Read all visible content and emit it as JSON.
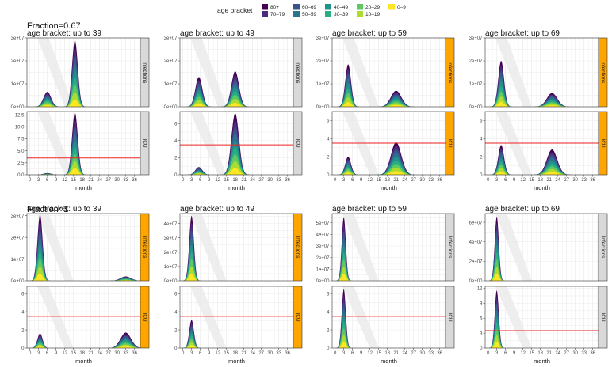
{
  "chart_data": {
    "type": "area",
    "description_free": true,
    "legend": {
      "title": "age bracket",
      "placement": "top-center",
      "entries": [
        {
          "label": "80+",
          "color": "#440154"
        },
        {
          "label": "70–79",
          "color": "#472d7b"
        },
        {
          "label": "60–69",
          "color": "#3b528b"
        },
        {
          "label": "50–59",
          "color": "#2c728e"
        },
        {
          "label": "40–49",
          "color": "#21918c"
        },
        {
          "label": "30–39",
          "color": "#28ae80"
        },
        {
          "label": "20–29",
          "color": "#5ec962"
        },
        {
          "label": "10–19",
          "color": "#addc30"
        },
        {
          "label": "0–9",
          "color": "#fde725"
        }
      ]
    },
    "group_titles": [
      "Fraction=0.67",
      "Fraction=1"
    ],
    "strip_labels": {
      "top": "Infections",
      "bottom": "ICU"
    },
    "xlabel": "month",
    "x_ticks": [
      0,
      3,
      6,
      9,
      12,
      15,
      18,
      21,
      24,
      27,
      30,
      33,
      36
    ],
    "xlim": [
      -1,
      38
    ],
    "icu_capacity": 3.5,
    "colors": {
      "capacity_line": "#ee2222",
      "strip_highlight": "#ffa500",
      "strip_default": "#d9d9d9",
      "shade": "#ebebeb"
    },
    "panels": [
      {
        "group": 0,
        "title": "age bracket:  up to 39",
        "highlight": {
          "infections": false,
          "icu": false
        },
        "infections": {
          "ylim": [
            0,
            30000000.0
          ],
          "y_tick_labels": [
            "0e+00",
            "1e+07",
            "2e+07",
            "3e+07"
          ],
          "y_tick_values": [
            0,
            10000000.0,
            20000000.0,
            30000000.0
          ],
          "peaks": [
            {
              "t": 6,
              "v": 6500000.0,
              "w": 1.3
            },
            {
              "t": 15.5,
              "v": 29000000.0,
              "w": 1.0
            }
          ]
        },
        "icu": {
          "ylim": [
            0,
            13.2
          ],
          "y_tick_labels": [
            "0.0",
            "2.5",
            "5.0",
            "7.5",
            "10.0",
            "12.5"
          ],
          "y_tick_values": [
            0,
            2.5,
            5.0,
            7.5,
            10.0,
            12.5
          ],
          "peaks": [
            {
              "t": 6,
              "v": 0.35,
              "w": 1.3
            },
            {
              "t": 15.5,
              "v": 13.0,
              "w": 1.0
            }
          ]
        }
      },
      {
        "group": 0,
        "title": "age bracket:  up to 49",
        "highlight": {
          "infections": false,
          "icu": false
        },
        "infections": {
          "ylim": [
            0,
            30000000.0
          ],
          "y_tick_labels": [
            "0e+00",
            "1e+07",
            "2e+07",
            "3e+07"
          ],
          "y_tick_values": [
            0,
            10000000.0,
            20000000.0,
            30000000.0
          ],
          "peaks": [
            {
              "t": 5.5,
              "v": 13000000.0,
              "w": 1.2
            },
            {
              "t": 18,
              "v": 15500000.0,
              "w": 1.3
            }
          ]
        },
        "icu": {
          "ylim": [
            0,
            7.4
          ],
          "y_tick_labels": [
            "0",
            "2",
            "4",
            "6"
          ],
          "y_tick_values": [
            0,
            2,
            4,
            6
          ],
          "peaks": [
            {
              "t": 5.5,
              "v": 0.9,
              "w": 1.2
            },
            {
              "t": 18,
              "v": 7.2,
              "w": 1.3
            }
          ]
        }
      },
      {
        "group": 0,
        "title": "age bracket:  up to 59",
        "highlight": {
          "infections": true,
          "icu": true
        },
        "infections": {
          "ylim": [
            0,
            30000000.0
          ],
          "y_tick_labels": [
            "0e+00",
            "1e+07",
            "2e+07",
            "3e+07"
          ],
          "y_tick_values": [
            0,
            10000000.0,
            20000000.0,
            30000000.0
          ],
          "peaks": [
            {
              "t": 4.5,
              "v": 18500000.0,
              "w": 1.0
            },
            {
              "t": 21,
              "v": 7000000.0,
              "w": 1.8
            }
          ]
        },
        "icu": {
          "ylim": [
            0,
            7.0
          ],
          "y_tick_labels": [
            "0",
            "2",
            "4",
            "6"
          ],
          "y_tick_values": [
            0,
            2,
            4,
            6
          ],
          "peaks": [
            {
              "t": 4.5,
              "v": 2.0,
              "w": 1.0
            },
            {
              "t": 21,
              "v": 3.6,
              "w": 1.8
            }
          ]
        }
      },
      {
        "group": 0,
        "title": "age bracket:  up to 69",
        "highlight": {
          "infections": true,
          "icu": true
        },
        "infections": {
          "ylim": [
            0,
            30000000.0
          ],
          "y_tick_labels": [
            "0e+00",
            "1e+07",
            "2e+07",
            "3e+07"
          ],
          "y_tick_values": [
            0,
            10000000.0,
            20000000.0,
            30000000.0
          ],
          "peaks": [
            {
              "t": 4.5,
              "v": 20000000.0,
              "w": 1.0
            },
            {
              "t": 22,
              "v": 6000000.0,
              "w": 1.8
            }
          ]
        },
        "icu": {
          "ylim": [
            0,
            7.0
          ],
          "y_tick_labels": [
            "0",
            "2",
            "4",
            "6"
          ],
          "y_tick_values": [
            0,
            2,
            4,
            6
          ],
          "peaks": [
            {
              "t": 4.5,
              "v": 3.3,
              "w": 1.0
            },
            {
              "t": 22,
              "v": 2.8,
              "w": 1.8
            }
          ]
        }
      },
      {
        "group": 1,
        "title": "age bracket:  up to 39",
        "highlight": {
          "infections": true,
          "icu": true
        },
        "infections": {
          "ylim": [
            0,
            31000000.0
          ],
          "y_tick_labels": [
            "0e+00",
            "1e+07",
            "2e+07",
            "3e+07"
          ],
          "y_tick_values": [
            0,
            10000000.0,
            20000000.0,
            30000000.0
          ],
          "peaks": [
            {
              "t": 3.5,
              "v": 30500000.0,
              "w": 0.9
            },
            {
              "t": 33,
              "v": 2000000.0,
              "w": 1.8
            }
          ]
        },
        "icu": {
          "ylim": [
            0,
            6.8
          ],
          "y_tick_labels": [
            "0",
            "2",
            "4",
            "6"
          ],
          "y_tick_values": [
            0,
            2,
            4,
            6
          ],
          "peaks": [
            {
              "t": 3.5,
              "v": 1.6,
              "w": 0.9
            },
            {
              "t": 33,
              "v": 1.7,
              "w": 1.8
            }
          ]
        }
      },
      {
        "group": 1,
        "title": "age bracket:  up to 49",
        "highlight": {
          "infections": true,
          "icu": true
        },
        "infections": {
          "ylim": [
            0,
            47000000.0
          ],
          "y_tick_labels": [
            "0e+00",
            "1e+07",
            "2e+07",
            "3e+07",
            "4e+07"
          ],
          "y_tick_values": [
            0,
            10000000.0,
            20000000.0,
            30000000.0,
            40000000.0
          ],
          "peaks": [
            {
              "t": 3,
              "v": 45500000.0,
              "w": 0.8
            }
          ]
        },
        "icu": {
          "ylim": [
            0,
            6.8
          ],
          "y_tick_labels": [
            "0",
            "2",
            "4",
            "6"
          ],
          "y_tick_values": [
            0,
            2,
            4,
            6
          ],
          "peaks": [
            {
              "t": 3,
              "v": 3.1,
              "w": 0.8
            }
          ]
        }
      },
      {
        "group": 1,
        "title": "age bracket:  up to 59",
        "highlight": {
          "infections": false,
          "icu": false
        },
        "infections": {
          "ylim": [
            0,
            58000000.0
          ],
          "y_tick_labels": [
            "0e+00",
            "1e+07",
            "2e+07",
            "3e+07",
            "4e+07",
            "5e+07"
          ],
          "y_tick_values": [
            0,
            10000000.0,
            20000000.0,
            30000000.0,
            40000000.0,
            50000000.0
          ],
          "peaks": [
            {
              "t": 3,
              "v": 55000000.0,
              "w": 0.7
            }
          ]
        },
        "icu": {
          "ylim": [
            0,
            6.8
          ],
          "y_tick_labels": [
            "0",
            "2",
            "4",
            "6"
          ],
          "y_tick_values": [
            0,
            2,
            4,
            6
          ],
          "peaks": [
            {
              "t": 3,
              "v": 6.5,
              "w": 0.7
            }
          ]
        }
      },
      {
        "group": 1,
        "title": "age bracket:  up to 69",
        "highlight": {
          "infections": false,
          "icu": false
        },
        "infections": {
          "ylim": [
            0,
            69000000.0
          ],
          "y_tick_labels": [
            "0e+00",
            "2e+07",
            "4e+07",
            "6e+07"
          ],
          "y_tick_values": [
            0,
            20000000.0,
            40000000.0,
            60000000.0
          ],
          "peaks": [
            {
              "t": 3,
              "v": 66000000.0,
              "w": 0.7
            }
          ]
        },
        "icu": {
          "ylim": [
            0,
            12.4
          ],
          "y_tick_labels": [
            "0",
            "3",
            "6",
            "9",
            "12"
          ],
          "y_tick_values": [
            0,
            3,
            6,
            9,
            12
          ],
          "peaks": [
            {
              "t": 3,
              "v": 11.6,
              "w": 0.7
            }
          ]
        }
      }
    ]
  }
}
